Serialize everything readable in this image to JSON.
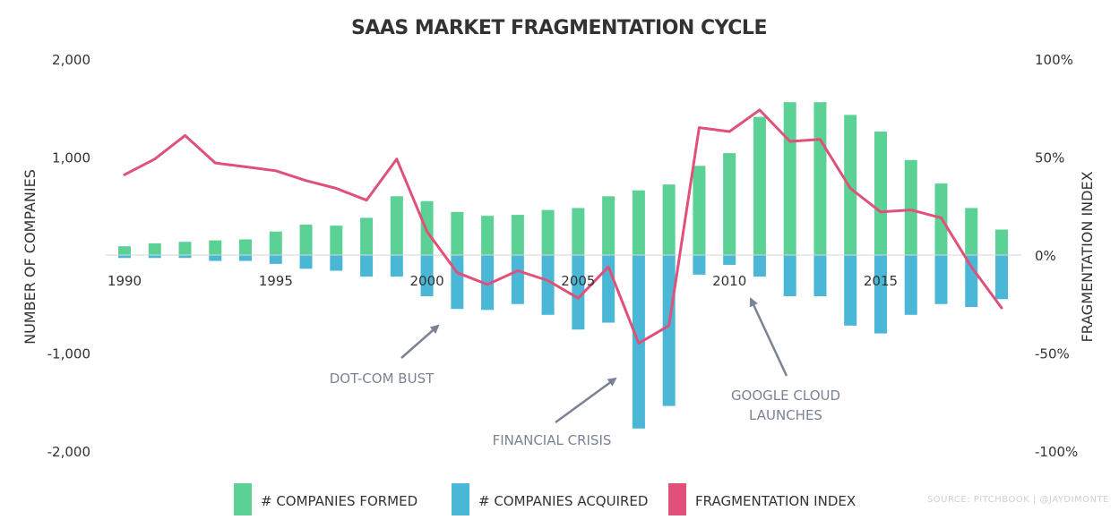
{
  "chart_data": {
    "type": "bar+line",
    "title": "SAAS MARKET FRAGMENTATION CYCLE",
    "x": [
      1990,
      1991,
      1992,
      1993,
      1994,
      1995,
      1996,
      1997,
      1998,
      1999,
      2000,
      2001,
      2002,
      2003,
      2004,
      2005,
      2006,
      2007,
      2008,
      2009,
      2010,
      2011,
      2012,
      2013,
      2014,
      2015,
      2016,
      2017,
      2018,
      2019
    ],
    "x_tick_labels": [
      "1990",
      "1995",
      "2000",
      "2005",
      "2010",
      "2015"
    ],
    "x_tick_values": [
      1990,
      1995,
      2000,
      2005,
      2010,
      2015
    ],
    "series": [
      {
        "name": "# COMPANIES FORMED",
        "axis": "left",
        "kind": "bar",
        "color": "#5bd195",
        "values": [
          90,
          120,
          135,
          150,
          160,
          240,
          310,
          300,
          380,
          600,
          550,
          440,
          400,
          410,
          460,
          480,
          600,
          660,
          720,
          910,
          1040,
          1410,
          1560,
          1560,
          1430,
          1260,
          970,
          730,
          480,
          260
        ]
      },
      {
        "name": "# COMPANIES ACQUIRED",
        "axis": "left",
        "kind": "bar",
        "color": "#4ab7d6",
        "values": [
          -30,
          -30,
          -30,
          -60,
          -60,
          -90,
          -140,
          -160,
          -220,
          -220,
          -420,
          -550,
          -560,
          -500,
          -610,
          -760,
          -690,
          -1770,
          -1540,
          -200,
          -100,
          -220,
          -420,
          -420,
          -720,
          -800,
          -610,
          -500,
          -530,
          -450
        ]
      },
      {
        "name": "FRAGMENTATION INDEX",
        "axis": "right",
        "kind": "line",
        "color": "#e0517a",
        "values": [
          41,
          49,
          61,
          47,
          45,
          43,
          38,
          34,
          28,
          49,
          12,
          -9,
          -15,
          -8,
          -13,
          -22,
          -6,
          -45,
          -36,
          65,
          63,
          74,
          58,
          59,
          34,
          22,
          23,
          19,
          -6,
          -27
        ]
      }
    ],
    "ylim": [
      -2000,
      2000
    ],
    "y_ticks": [
      -2000,
      -1000,
      0,
      1000,
      2000
    ],
    "y_tick_labels": [
      "-2,000",
      "-1,000",
      "",
      "1,000",
      "2,000"
    ],
    "y2lim": [
      -100,
      100
    ],
    "y2_ticks": [
      -100,
      -50,
      0,
      50,
      100
    ],
    "y2_tick_labels": [
      "-100%",
      "-50%",
      "0%",
      "50%",
      "100%"
    ],
    "ylabel": "NUMBER OF COMPANIES",
    "y2label": "FRAGMENTATION INDEX",
    "annotations": [
      {
        "text": "DOT-COM BUST",
        "lines": [
          "DOT-COM BUST"
        ]
      },
      {
        "text": "FINANCIAL CRISIS",
        "lines": [
          "FINANCIAL CRISIS"
        ]
      },
      {
        "text": "GOOGLE CLOUD LAUNCHES",
        "lines": [
          "GOOGLE CLOUD",
          "LAUNCHES"
        ]
      }
    ],
    "legend": {
      "placement": "bottom"
    },
    "grid": false
  },
  "source": "SOURCE: PITCHBOOK | @JAYDIMONTE"
}
